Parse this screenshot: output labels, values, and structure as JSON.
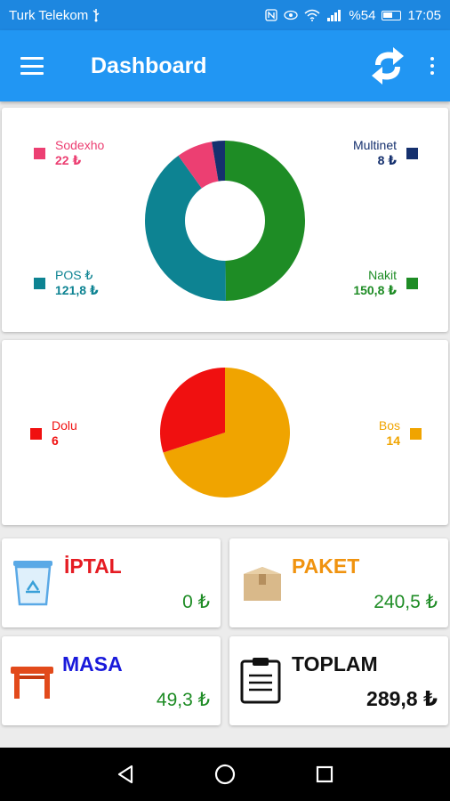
{
  "status_bar": {
    "carrier": "Turk Telekom",
    "usb_icon": "usb-icon",
    "battery_percent": "%54",
    "time": "17:05"
  },
  "app_bar": {
    "title": "Dashboard"
  },
  "colors": {
    "app_bar": "#2196f3",
    "status_bar": "#1d87e0",
    "sodexho": "#ec3f72",
    "multinet": "#15306e",
    "pos": "#0d8392",
    "nakit": "#1e8c25",
    "dolu": "#f01010",
    "bos": "#f0a400"
  },
  "chart_data": [
    {
      "type": "pie",
      "variant": "donut",
      "title": "",
      "labels": [
        "Nakit",
        "POS ₺",
        "Sodexho",
        "Multinet"
      ],
      "values": [
        150.8,
        121.8,
        22,
        8
      ],
      "legend": [
        {
          "name": "Sodexho",
          "value": "22 ₺"
        },
        {
          "name": "Multinet",
          "value": "8 ₺"
        },
        {
          "name": "POS ₺",
          "value": "121,8 ₺"
        },
        {
          "name": "Nakit",
          "value": "150,8 ₺"
        }
      ]
    },
    {
      "type": "pie",
      "title": "",
      "labels": [
        "Bos",
        "Dolu"
      ],
      "values": [
        14,
        6
      ],
      "legend": [
        {
          "name": "Dolu",
          "value": "6"
        },
        {
          "name": "Bos",
          "value": "14"
        }
      ]
    }
  ],
  "tiles": {
    "iptal": {
      "label": "İPTAL",
      "value": "0 ₺",
      "icon": "recycle-bin-icon",
      "color": "#e51c23"
    },
    "paket": {
      "label": "PAKET",
      "value": "240,5 ₺",
      "icon": "package-box-icon",
      "color": "#f0930f"
    },
    "masa": {
      "label": "MASA",
      "value": "49,3 ₺",
      "icon": "table-icon",
      "color": "#1a1adb"
    },
    "toplam": {
      "label": "TOPLAM",
      "value": "289,8 ₺",
      "icon": "clipboard-icon",
      "color": "#111111"
    }
  },
  "nav_bar": {
    "back_icon": "back-icon",
    "home_icon": "home-icon",
    "recents_icon": "recents-icon"
  }
}
